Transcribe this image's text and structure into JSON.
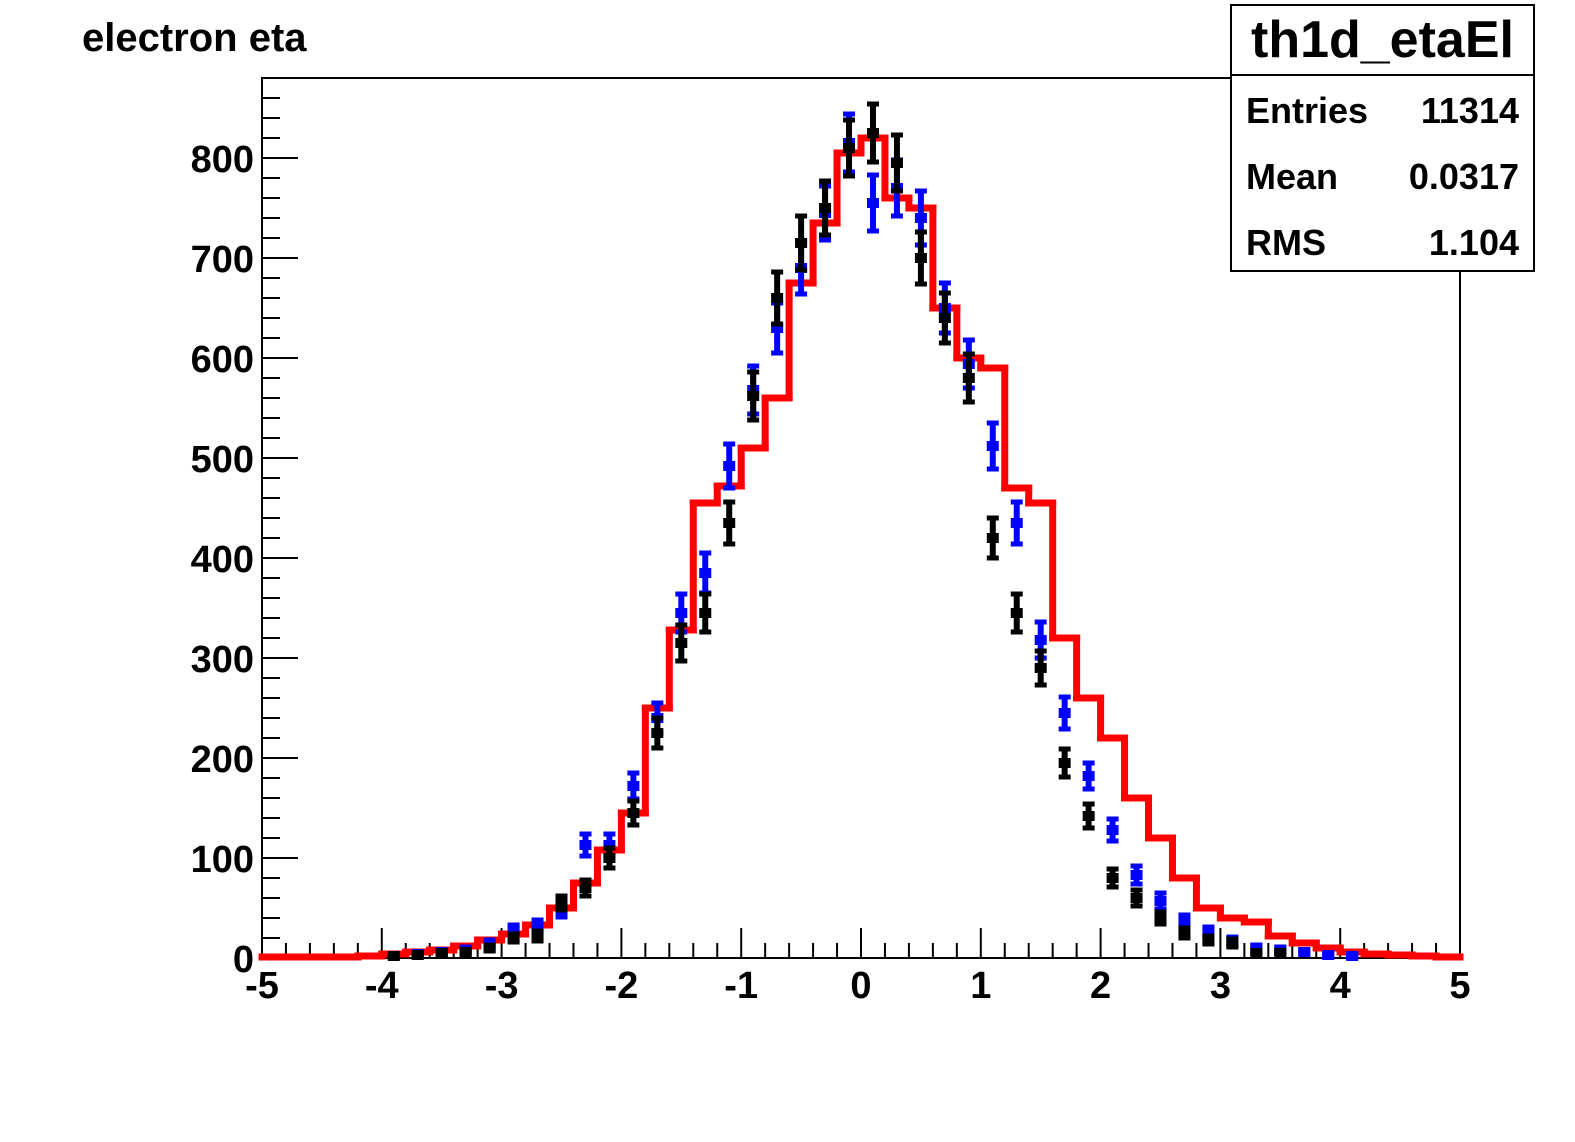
{
  "title": "electron eta",
  "stats": {
    "name": "th1d_etaEl",
    "rows": [
      {
        "label": "Entries",
        "value": "11314"
      },
      {
        "label": "Mean",
        "value": "0.0317"
      },
      {
        "label": "RMS",
        "value": "1.104"
      }
    ]
  },
  "colors": {
    "red": "#ff0000",
    "blue": "#0000ff",
    "black": "#000000"
  },
  "chart_data": {
    "type": "histogram",
    "xlim": [
      -5,
      5
    ],
    "ylim": [
      0,
      880
    ],
    "xticks": [
      -5,
      -4,
      -3,
      -2,
      -1,
      0,
      1,
      2,
      3,
      4,
      5
    ],
    "yticks": [
      0,
      100,
      200,
      300,
      400,
      500,
      600,
      700,
      800
    ],
    "bin_width": 0.2,
    "series": [
      {
        "color": "red",
        "style": "step",
        "x": [
          -4.9,
          -4.7,
          -4.5,
          -4.3,
          -4.1,
          -3.9,
          -3.7,
          -3.5,
          -3.3,
          -3.1,
          -2.9,
          -2.7,
          -2.5,
          -2.3,
          -2.1,
          -1.9,
          -1.7,
          -1.5,
          -1.3,
          -1.1,
          -0.9,
          -0.7,
          -0.5,
          -0.3,
          -0.1,
          0.1,
          0.3,
          0.5,
          0.7,
          0.9,
          1.1,
          1.3,
          1.5,
          1.7,
          1.9,
          2.1,
          2.3,
          2.5,
          2.7,
          2.9,
          3.1,
          3.3,
          3.5,
          3.7,
          3.9,
          4.1,
          4.3,
          4.5,
          4.7,
          4.9
        ],
        "y": [
          1,
          1,
          1,
          1,
          2,
          4,
          6,
          8,
          12,
          18,
          24,
          33,
          50,
          75,
          108,
          145,
          250,
          328,
          455,
          472,
          510,
          560,
          675,
          735,
          805,
          820,
          760,
          750,
          650,
          600,
          590,
          470,
          455,
          320,
          260,
          220,
          160,
          120,
          80,
          50,
          40,
          36,
          22,
          15,
          10,
          6,
          4,
          3,
          2,
          1
        ]
      },
      {
        "color": "blue",
        "style": "errorbar",
        "x": [
          -3.7,
          -3.5,
          -3.3,
          -3.1,
          -2.9,
          -2.7,
          -2.5,
          -2.3,
          -2.1,
          -1.9,
          -1.7,
          -1.5,
          -1.3,
          -1.1,
          -0.9,
          -0.7,
          -0.5,
          -0.3,
          -0.1,
          0.1,
          0.3,
          0.5,
          0.7,
          0.9,
          1.1,
          1.3,
          1.5,
          1.7,
          1.9,
          2.1,
          2.3,
          2.5,
          2.7,
          2.9,
          3.1,
          3.3,
          3.5,
          3.7,
          3.9,
          4.1
        ],
        "y": [
          4,
          6,
          8,
          14,
          28,
          32,
          48,
          113,
          113,
          172,
          240,
          345,
          385,
          492,
          568,
          630,
          690,
          745,
          815,
          755,
          770,
          740,
          650,
          594,
          512,
          435,
          318,
          245,
          182,
          128,
          83,
          57,
          37,
          26,
          17,
          10,
          8,
          6,
          3,
          2
        ],
        "err": [
          2,
          2.5,
          3,
          4,
          5,
          6,
          7,
          11,
          11,
          13,
          15,
          19,
          20,
          22,
          24,
          25,
          26,
          27,
          29,
          28,
          28,
          27,
          25,
          24,
          23,
          21,
          18,
          16,
          13,
          11,
          9,
          8,
          6,
          5,
          4,
          3,
          3,
          2.5,
          2,
          1.5
        ]
      },
      {
        "color": "black",
        "style": "errorbar",
        "x": [
          -3.9,
          -3.7,
          -3.5,
          -3.3,
          -3.1,
          -2.9,
          -2.7,
          -2.5,
          -2.3,
          -2.1,
          -1.9,
          -1.7,
          -1.5,
          -1.3,
          -1.1,
          -0.9,
          -0.7,
          -0.5,
          -0.3,
          -0.1,
          0.1,
          0.3,
          0.5,
          0.7,
          0.9,
          1.1,
          1.3,
          1.5,
          1.7,
          1.9,
          2.1,
          2.3,
          2.5,
          2.7,
          2.9,
          3.1,
          3.3,
          3.5
        ],
        "y": [
          2,
          3,
          5,
          6,
          10,
          20,
          22,
          55,
          70,
          100,
          145,
          225,
          315,
          345,
          435,
          562,
          660,
          715,
          750,
          810,
          825,
          795,
          700,
          640,
          580,
          420,
          345,
          290,
          195,
          142,
          80,
          60,
          40,
          25,
          18,
          15,
          5,
          5
        ],
        "err": [
          1.5,
          2,
          2,
          2.5,
          3,
          4,
          5,
          7,
          8,
          10,
          12,
          15,
          18,
          19,
          21,
          24,
          26,
          27,
          27,
          28,
          29,
          28,
          26,
          25,
          24,
          20,
          19,
          17,
          14,
          12,
          9,
          8,
          6,
          5,
          4,
          4,
          2,
          2
        ]
      }
    ]
  }
}
